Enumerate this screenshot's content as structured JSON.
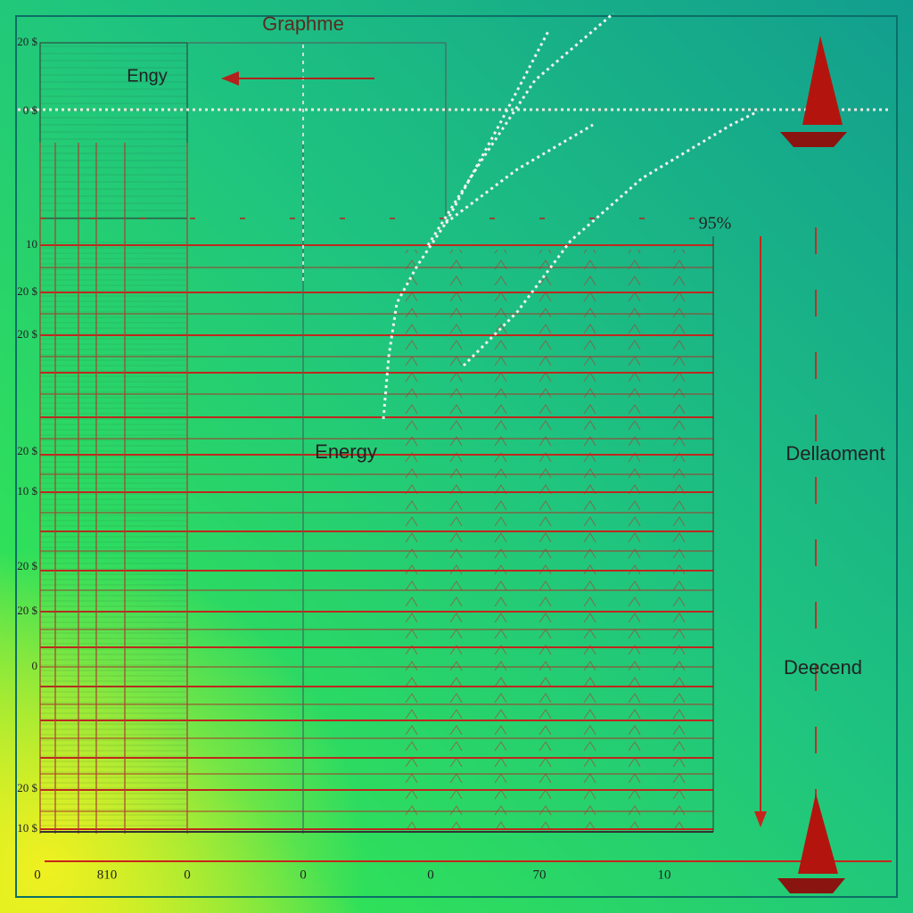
{
  "title": "Graphme",
  "labels": {
    "upper": "Engy",
    "middle": "Energy",
    "right_top": "Dellaoment",
    "right_bottom": "Deecend",
    "percent": "95%"
  },
  "y_labels": [
    "20 $",
    "0 $",
    "10",
    "20 $",
    "20 $",
    "20 $",
    "10 $",
    "20 $",
    "20 $",
    "0",
    "20 $",
    "10 $"
  ],
  "x_labels": [
    "0",
    "810",
    "0",
    "0",
    "0",
    "70",
    "10"
  ]
}
